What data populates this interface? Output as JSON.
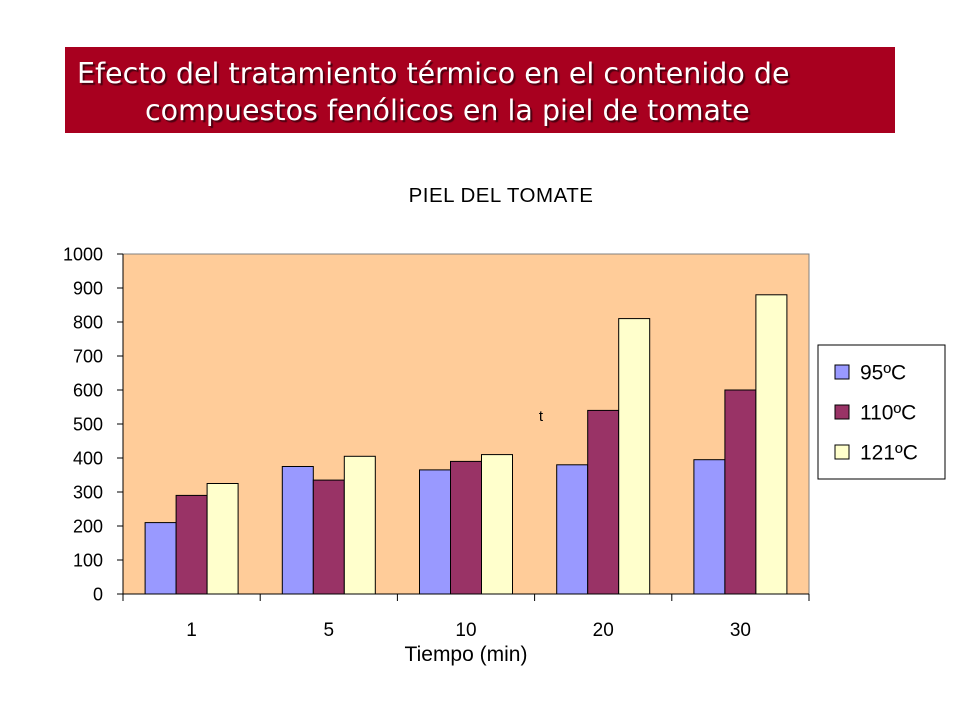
{
  "banner": {
    "line1": "Efecto del tratamiento térmico en el contenido de",
    "line2": "compuestos fenólicos en la piel de tomate"
  },
  "chart_data": {
    "type": "bar",
    "title": "PIEL DEL TOMATE",
    "xlabel": "Tiempo (min)",
    "ylabel": "",
    "categories": [
      "1",
      "5",
      "10",
      "20",
      "30"
    ],
    "ylim": [
      0,
      1000
    ],
    "yticks": [
      0,
      100,
      200,
      300,
      400,
      500,
      600,
      700,
      800,
      900,
      1000
    ],
    "series": [
      {
        "name": "95ºC",
        "color": "#9999ff",
        "values": [
          210,
          375,
          365,
          380,
          395
        ]
      },
      {
        "name": "110ºC",
        "color": "#993366",
        "values": [
          290,
          335,
          390,
          540,
          600
        ]
      },
      {
        "name": "121ºC",
        "color": "#ffffcc",
        "values": [
          325,
          405,
          410,
          810,
          880
        ]
      }
    ],
    "plot_background": "#ffcc99",
    "grid": false,
    "legend": "right",
    "annotations": [
      "t"
    ]
  }
}
